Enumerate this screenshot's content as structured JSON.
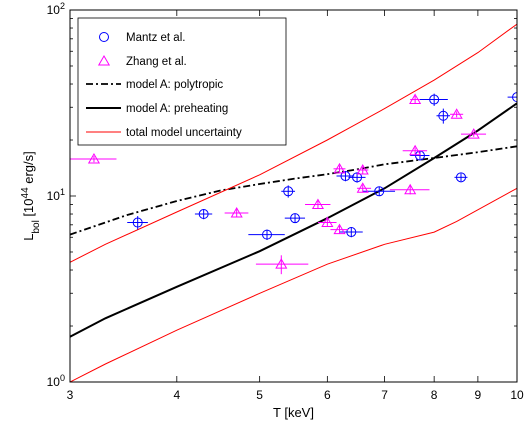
{
  "chart_data": {
    "type": "scatter",
    "x_scale": "log",
    "y_scale": "log",
    "xlim": [
      3,
      10
    ],
    "ylim": [
      1,
      100
    ],
    "xlabel": "T [keV]",
    "ylabel_main": "L",
    "ylabel_sub": "bol",
    "ylabel_pre": " [10",
    "ylabel_sup": "44",
    "ylabel_post": " erg/s]",
    "x_ticks": [
      3,
      4,
      5,
      6,
      7,
      8,
      9,
      10
    ],
    "x_tick_labels": [
      "3",
      "4",
      "5",
      "6",
      "7",
      "8",
      "9",
      "10"
    ],
    "y_ticks": [
      1,
      10,
      100
    ],
    "y_tick_labels": [
      {
        "base": "10",
        "exp": "0"
      },
      {
        "base": "10",
        "exp": "1"
      },
      {
        "base": "10",
        "exp": "2"
      }
    ],
    "grid": false,
    "legend_position": "top-left",
    "colors": {
      "mantz": "#0000ff",
      "zhang": "#ff00ff",
      "polytropic": "#000000",
      "preheating": "#000000",
      "uncertainty": "#ff0000"
    },
    "series": [
      {
        "name": "Mantz et al.",
        "kind": "points",
        "marker": "circle-cross",
        "points": [
          {
            "x": 3.6,
            "y": 7.2,
            "xerr": [
              3.5,
              3.7
            ],
            "yerr": [
              6.6,
              7.8
            ]
          },
          {
            "x": 4.3,
            "y": 8.0,
            "xerr": [
              4.2,
              4.4
            ],
            "yerr": [
              7.5,
              8.5
            ]
          },
          {
            "x": 5.1,
            "y": 6.2,
            "xerr": [
              4.85,
              5.35
            ],
            "yerr": [
              5.8,
              6.6
            ]
          },
          {
            "x": 5.4,
            "y": 10.6,
            "xerr": [
              5.3,
              5.5
            ],
            "yerr": [
              9.8,
              11.4
            ]
          },
          {
            "x": 5.5,
            "y": 7.6,
            "xerr": [
              5.35,
              5.65
            ],
            "yerr": [
              7.2,
              8.0
            ]
          },
          {
            "x": 6.3,
            "y": 12.8,
            "xerr": [
              6.15,
              6.45
            ],
            "yerr": [
              12.0,
              13.6
            ]
          },
          {
            "x": 6.4,
            "y": 6.4,
            "xerr": [
              6.2,
              6.6
            ],
            "yerr": [
              6.0,
              6.8
            ]
          },
          {
            "x": 6.5,
            "y": 12.6,
            "xerr": [
              6.35,
              6.65
            ],
            "yerr": [
              11.8,
              13.4
            ]
          },
          {
            "x": 6.9,
            "y": 10.6,
            "xerr": [
              6.6,
              7.2
            ],
            "yerr": [
              10.0,
              11.2
            ]
          },
          {
            "x": 7.7,
            "y": 16.5,
            "xerr": [
              7.5,
              7.9
            ],
            "yerr": [
              15.6,
              17.4
            ]
          },
          {
            "x": 8.0,
            "y": 33.0,
            "xerr": [
              7.7,
              8.3
            ],
            "yerr": [
              30.5,
              35.5
            ]
          },
          {
            "x": 8.2,
            "y": 27.0,
            "xerr": [
              8.05,
              8.35
            ],
            "yerr": [
              24.5,
              29.5
            ]
          },
          {
            "x": 8.6,
            "y": 12.6,
            "xerr": [
              8.45,
              8.75
            ],
            "yerr": [
              12.0,
              13.2
            ]
          },
          {
            "x": 10.0,
            "y": 34.0,
            "xerr": [
              9.75,
              10.25
            ],
            "yerr": [
              32.0,
              36.0
            ]
          }
        ]
      },
      {
        "name": "Zhang et al.",
        "kind": "points",
        "marker": "triangle",
        "points": [
          {
            "x": 3.2,
            "y": 15.8,
            "xerr": [
              3.0,
              3.4
            ],
            "yerr": [
              15.2,
              16.4
            ]
          },
          {
            "x": 4.7,
            "y": 8.1,
            "xerr": [
              4.55,
              4.85
            ],
            "yerr": [
              7.7,
              8.5
            ]
          },
          {
            "x": 5.3,
            "y": 4.3,
            "xerr": [
              4.95,
              5.7
            ],
            "yerr": [
              3.8,
              4.8
            ]
          },
          {
            "x": 5.85,
            "y": 9.0,
            "xerr": [
              5.65,
              6.05
            ],
            "yerr": [
              8.6,
              9.4
            ]
          },
          {
            "x": 6.0,
            "y": 7.2,
            "xerr": [
              5.85,
              6.15
            ],
            "yerr": [
              6.9,
              7.5
            ]
          },
          {
            "x": 6.2,
            "y": 6.6,
            "xerr": [
              6.05,
              6.35
            ],
            "yerr": [
              6.3,
              6.9
            ]
          },
          {
            "x": 6.2,
            "y": 14.0,
            "xerr": [
              6.1,
              6.3
            ],
            "yerr": [
              13.4,
              14.6
            ]
          },
          {
            "x": 6.6,
            "y": 13.8,
            "xerr": [
              6.5,
              6.7
            ],
            "yerr": [
              13.2,
              14.4
            ]
          },
          {
            "x": 6.6,
            "y": 11.0,
            "xerr": [
              6.5,
              6.75
            ],
            "yerr": [
              10.5,
              11.5
            ]
          },
          {
            "x": 7.5,
            "y": 10.8,
            "xerr": [
              7.1,
              7.9
            ],
            "yerr": [
              10.2,
              11.4
            ]
          },
          {
            "x": 7.6,
            "y": 17.5,
            "xerr": [
              7.35,
              7.85
            ],
            "yerr": [
              16.8,
              18.2
            ]
          },
          {
            "x": 7.6,
            "y": 33.0,
            "xerr": [
              7.5,
              7.7
            ],
            "yerr": [
              31.5,
              34.5
            ]
          },
          {
            "x": 8.5,
            "y": 27.5,
            "xerr": [
              8.35,
              8.65
            ],
            "yerr": [
              26.5,
              28.5
            ]
          },
          {
            "x": 8.9,
            "y": 21.5,
            "xerr": [
              8.6,
              9.2
            ],
            "yerr": [
              20.8,
              22.2
            ]
          }
        ]
      },
      {
        "name": "model A: polytropic",
        "kind": "line",
        "style": "dashdot",
        "points": [
          [
            3,
            6.2
          ],
          [
            3.5,
            7.9
          ],
          [
            4,
            9.4
          ],
          [
            4.5,
            10.7
          ],
          [
            5,
            11.6
          ],
          [
            5.5,
            12.4
          ],
          [
            6,
            13.1
          ],
          [
            6.5,
            13.9
          ],
          [
            7,
            14.8
          ],
          [
            8,
            16.0
          ],
          [
            9,
            17.2
          ],
          [
            10,
            18.5
          ]
        ]
      },
      {
        "name": "model A: preheating",
        "kind": "line",
        "style": "solid-thick",
        "points": [
          [
            3,
            1.75
          ],
          [
            3.3,
            2.2
          ],
          [
            4,
            3.25
          ],
          [
            5,
            5.05
          ],
          [
            6,
            7.6
          ],
          [
            7,
            11.0
          ],
          [
            8,
            16.0
          ],
          [
            9,
            22.5
          ],
          [
            10,
            31.5
          ]
        ]
      },
      {
        "name": "total model uncertainty",
        "kind": "line",
        "style": "thin",
        "points": [
          [
            3,
            4.4
          ],
          [
            3.3,
            5.5
          ],
          [
            4,
            8.2
          ],
          [
            5,
            13.0
          ],
          [
            6,
            20.0
          ],
          [
            7,
            29.5
          ],
          [
            8,
            42.0
          ],
          [
            9,
            59.0
          ],
          [
            10,
            84.0
          ]
        ]
      },
      {
        "name": "",
        "kind": "line",
        "style": "thin",
        "points": [
          [
            3,
            1.0
          ],
          [
            3.3,
            1.25
          ],
          [
            4,
            1.9
          ],
          [
            5,
            3.0
          ],
          [
            6,
            4.3
          ],
          [
            7,
            5.5
          ],
          [
            8,
            6.4
          ],
          [
            8.5,
            7.3
          ],
          [
            10,
            11.0
          ]
        ]
      }
    ]
  }
}
